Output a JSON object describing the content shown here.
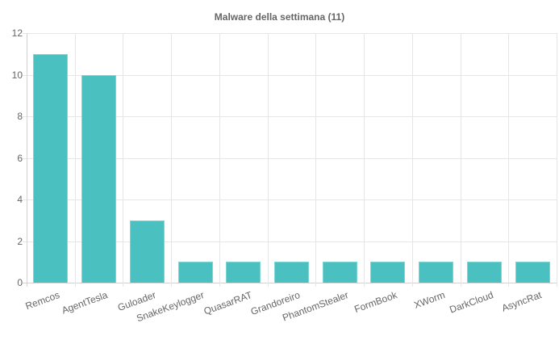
{
  "title": "Malware della settimana (11)",
  "colors": {
    "bar": "#4BC0C0",
    "bar_border": "#7fd4d4",
    "grid": "#e6e6e6",
    "axis": "#d2d2d2",
    "text": "#666666",
    "background": "#ffffff"
  },
  "chart_data": {
    "type": "bar",
    "title": "Malware della settimana (11)",
    "categories": [
      "Remcos",
      "AgentTesla",
      "Guloader",
      "SnakeKeylogger",
      "QuasarRAT",
      "Grandoreiro",
      "PhantomStealer",
      "FormBook",
      "XWorm",
      "DarkCloud",
      "AsyncRat"
    ],
    "values": [
      11,
      10,
      3,
      1,
      1,
      1,
      1,
      1,
      1,
      1,
      1
    ],
    "xlabel": "",
    "ylabel": "",
    "ylim": [
      0,
      12
    ],
    "yticks": [
      0,
      2,
      4,
      6,
      8,
      10,
      12
    ],
    "grid": true,
    "legend": false,
    "x_label_rotation_deg": -20
  }
}
